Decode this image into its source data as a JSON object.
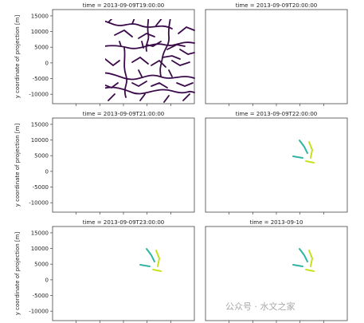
{
  "figure": {
    "ylabel": "y coordinate of projection [m]",
    "watermark": "公众号 · 水文之家"
  },
  "chart_data": [
    {
      "type": "heatmap",
      "title": "time = 2013-09-09T19:00:00",
      "ylabel": "y coordinate of projection [m]",
      "ylim": [
        -13000,
        17000
      ],
      "yticks": [
        15000,
        10000,
        5000,
        0,
        -5000,
        -10000
      ],
      "highlight": []
    },
    {
      "type": "heatmap",
      "title": "time = 2013-09-09T20:00:00",
      "ylabel": "",
      "ylim": [
        -13000,
        17000
      ],
      "yticks": [],
      "highlight": []
    },
    {
      "type": "heatmap",
      "title": "time = 2013-09-09T21:00:00",
      "ylabel": "y coordinate of projection [m]",
      "ylim": [
        -13000,
        17000
      ],
      "yticks": [
        15000,
        10000,
        5000,
        0,
        -5000,
        -10000
      ],
      "highlight": []
    },
    {
      "type": "heatmap",
      "title": "time = 2013-09-09T22:00:00",
      "ylabel": "",
      "ylim": [
        -13000,
        17000
      ],
      "yticks": [],
      "highlight": [
        "#2fb5a0",
        "#c8e020"
      ]
    },
    {
      "type": "heatmap",
      "title": "time = 2013-09-09T23:00:00",
      "ylabel": "y coordinate of projection [m]",
      "ylim": [
        -13000,
        17000
      ],
      "yticks": [
        15000,
        10000,
        5000,
        0,
        -5000,
        -10000
      ],
      "highlight": [
        "#2fb5a0",
        "#c8e020"
      ]
    },
    {
      "type": "heatmap",
      "title": "time = 2013-09-10",
      "ylabel": "",
      "ylim": [
        -13000,
        17000
      ],
      "yticks": [],
      "highlight": [
        "#2fb5a0",
        "#c8e020"
      ]
    }
  ],
  "colors": {
    "river": "#3b0a4a",
    "background": "#ffffff"
  }
}
